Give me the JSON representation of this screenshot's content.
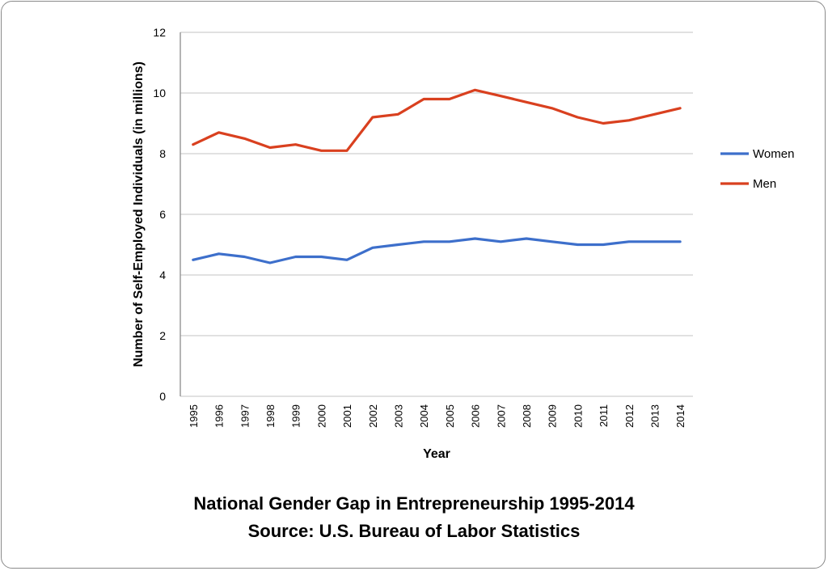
{
  "caption": {
    "title": "National Gender Gap in Entrepreneurship 1995-2014",
    "source": "Source: U.S. Bureau of Labor Statistics"
  },
  "chart_data": {
    "type": "line",
    "title": "National Gender Gap in Entrepreneurship 1995-2014",
    "subtitle": "Source: U.S. Bureau of Labor Statistics",
    "xlabel": "Year",
    "ylabel": "Number of Self-Employed Individuals (in millions)",
    "ylim": [
      0,
      12
    ],
    "yticks": [
      0,
      2,
      4,
      6,
      8,
      10,
      12
    ],
    "grid": true,
    "legend_position": "right",
    "categories": [
      "1995",
      "1996",
      "1997",
      "1998",
      "1999",
      "2000",
      "2001",
      "2002",
      "2003",
      "2004",
      "2005",
      "2006",
      "2007",
      "2008",
      "2009",
      "2010",
      "2011",
      "2012",
      "2013",
      "2014"
    ],
    "series": [
      {
        "name": "Women",
        "color": "#3d6fcb",
        "values": [
          4.5,
          4.7,
          4.6,
          4.4,
          4.6,
          4.6,
          4.5,
          4.9,
          5.0,
          5.1,
          5.1,
          5.2,
          5.1,
          5.2,
          5.1,
          5.0,
          5.0,
          5.1,
          5.1,
          5.1
        ]
      },
      {
        "name": "Men",
        "color": "#d9401f",
        "values": [
          8.3,
          8.7,
          8.5,
          8.2,
          8.3,
          8.1,
          8.1,
          9.2,
          9.3,
          9.8,
          9.8,
          10.1,
          9.9,
          9.7,
          9.5,
          9.2,
          9.0,
          9.1,
          9.3,
          9.5
        ]
      }
    ]
  }
}
